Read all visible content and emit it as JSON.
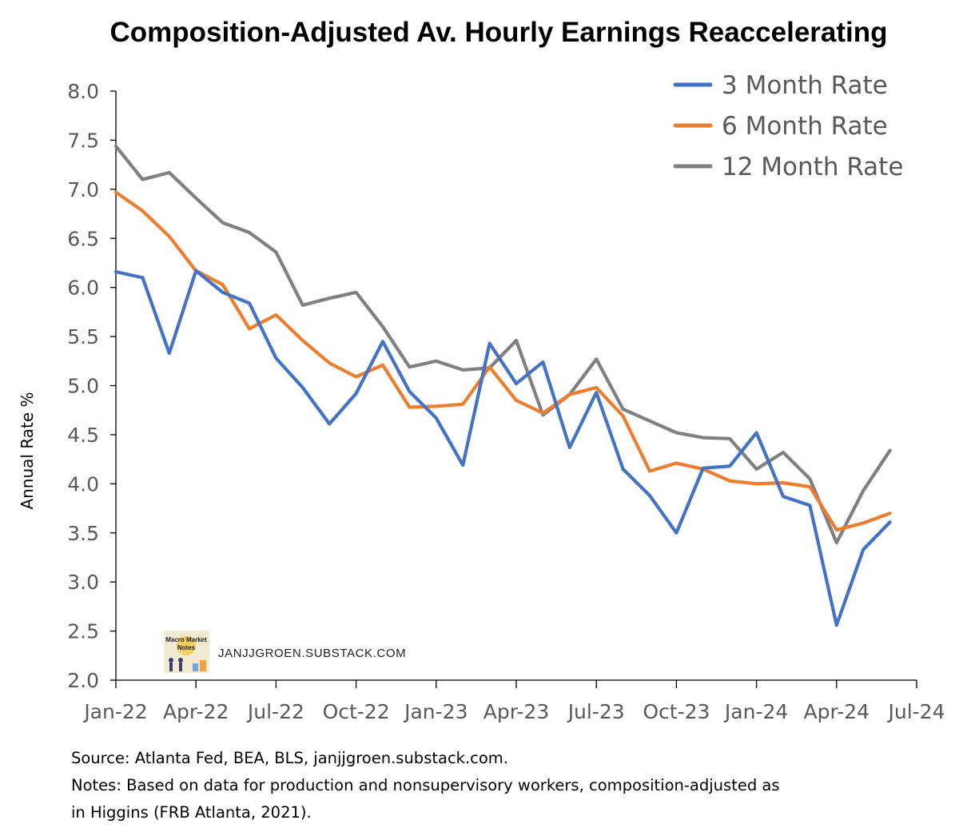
{
  "chart_data": {
    "type": "line",
    "title": "Composition-Adjusted Av. Hourly Earnings Reaccelerating",
    "ylabel": "Annual Rate %",
    "xlabel": "",
    "ylim": [
      2.0,
      8.0
    ],
    "y_ticks": [
      "2.0",
      "2.5",
      "3.0",
      "3.5",
      "4.0",
      "4.5",
      "5.0",
      "5.5",
      "6.0",
      "6.5",
      "7.0",
      "7.5",
      "8.0"
    ],
    "x_tick_labels": [
      "Jan-22",
      "Apr-22",
      "Jul-22",
      "Oct-22",
      "Jan-23",
      "Apr-23",
      "Jul-23",
      "Oct-23",
      "Jan-24",
      "Apr-24",
      "Jul-24"
    ],
    "x": [
      "Jan-22",
      "Feb-22",
      "Mar-22",
      "Apr-22",
      "May-22",
      "Jun-22",
      "Jul-22",
      "Aug-22",
      "Sep-22",
      "Oct-22",
      "Nov-22",
      "Dec-22",
      "Jan-23",
      "Feb-23",
      "Mar-23",
      "Apr-23",
      "May-23",
      "Jun-23",
      "Jul-23",
      "Aug-23",
      "Sep-23",
      "Oct-23",
      "Nov-23",
      "Dec-23",
      "Jan-24",
      "Feb-24",
      "Mar-24",
      "Apr-24",
      "May-24",
      "Jun-24"
    ],
    "grid": false,
    "legend_position": "top-right",
    "series": [
      {
        "name": "3 Month Rate",
        "color": "#4472C4",
        "values": [
          6.16,
          6.1,
          5.33,
          6.17,
          5.95,
          5.84,
          5.28,
          4.98,
          4.61,
          4.92,
          5.45,
          4.94,
          4.67,
          4.19,
          5.43,
          5.02,
          5.24,
          4.37,
          4.93,
          4.15,
          3.88,
          3.5,
          4.16,
          4.18,
          4.52,
          3.87,
          3.78,
          2.56,
          3.33,
          3.61
        ]
      },
      {
        "name": "6 Month Rate",
        "color": "#ED7D31",
        "values": [
          6.97,
          6.78,
          6.52,
          6.17,
          6.03,
          5.58,
          5.72,
          5.46,
          5.23,
          5.09,
          5.21,
          4.78,
          4.79,
          4.81,
          5.19,
          4.85,
          4.72,
          4.91,
          4.98,
          4.69,
          4.13,
          4.21,
          4.15,
          4.03,
          4.0,
          4.01,
          3.97,
          3.53,
          3.6,
          3.7
        ]
      },
      {
        "name": "12 Month Rate",
        "color": "#808080",
        "values": [
          7.44,
          7.1,
          7.17,
          6.91,
          6.66,
          6.56,
          6.36,
          5.82,
          5.89,
          5.95,
          5.6,
          5.19,
          5.25,
          5.16,
          5.18,
          5.46,
          4.7,
          4.91,
          5.27,
          4.76,
          4.64,
          4.52,
          4.47,
          4.46,
          4.15,
          4.32,
          4.05,
          3.4,
          3.93,
          4.34
        ]
      }
    ]
  },
  "watermark": {
    "text": "JANJJGROEN.SUBSTACK.COM",
    "logo_text_1": "Macro Market",
    "logo_text_2": "Notes"
  },
  "notes": {
    "source": "Source: Atlanta Fed, BEA, BLS, janjjgroen.substack.com.",
    "line1": "Notes: Based on data for production and nonsupervisory workers, composition-adjusted as",
    "line2": "in Higgins (FRB Atlanta, 2021)."
  }
}
